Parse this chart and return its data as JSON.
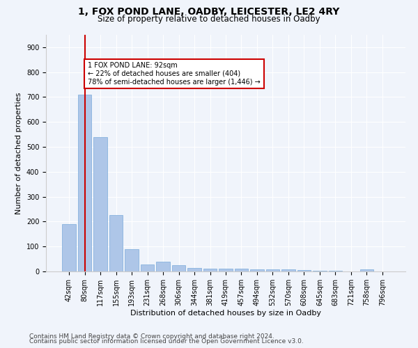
{
  "title1": "1, FOX POND LANE, OADBY, LEICESTER, LE2 4RY",
  "title2": "Size of property relative to detached houses in Oadby",
  "xlabel": "Distribution of detached houses by size in Oadby",
  "ylabel": "Number of detached properties",
  "categories": [
    "42sqm",
    "80sqm",
    "117sqm",
    "155sqm",
    "193sqm",
    "231sqm",
    "268sqm",
    "306sqm",
    "344sqm",
    "381sqm",
    "419sqm",
    "457sqm",
    "494sqm",
    "532sqm",
    "570sqm",
    "608sqm",
    "645sqm",
    "683sqm",
    "721sqm",
    "758sqm",
    "796sqm"
  ],
  "values": [
    190,
    710,
    540,
    225,
    90,
    27,
    38,
    25,
    13,
    10,
    11,
    10,
    9,
    8,
    7,
    5,
    4,
    3,
    0,
    7,
    0
  ],
  "bar_color": "#aec6e8",
  "bar_edge_color": "#7aabdb",
  "vline_x": 1,
  "vline_color": "#cc0000",
  "annotation_text": "1 FOX POND LANE: 92sqm\n← 22% of detached houses are smaller (404)\n78% of semi-detached houses are larger (1,446) →",
  "annotation_box_color": "white",
  "annotation_box_edge_color": "#cc0000",
  "ylim": [
    0,
    950
  ],
  "yticks": [
    0,
    100,
    200,
    300,
    400,
    500,
    600,
    700,
    800,
    900
  ],
  "footer1": "Contains HM Land Registry data © Crown copyright and database right 2024.",
  "footer2": "Contains public sector information licensed under the Open Government Licence v3.0.",
  "bg_color": "#f0f4fb",
  "plot_bg_color": "#f0f4fb",
  "title1_fontsize": 10,
  "title2_fontsize": 8.5,
  "xlabel_fontsize": 8,
  "ylabel_fontsize": 8,
  "tick_fontsize": 7,
  "annot_fontsize": 7,
  "footer_fontsize": 6.5
}
